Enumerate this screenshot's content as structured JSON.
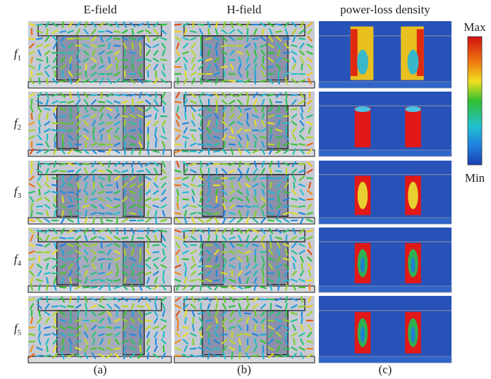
{
  "column_titles": [
    "E-field",
    "H-field",
    "power-loss density"
  ],
  "row_labels": [
    {
      "base": "f",
      "sub": "1"
    },
    {
      "base": "f",
      "sub": "2"
    },
    {
      "base": "f",
      "sub": "3"
    },
    {
      "base": "f",
      "sub": "4"
    },
    {
      "base": "f",
      "sub": "5"
    }
  ],
  "colorbar": {
    "max": "Max",
    "min": "Min"
  },
  "panel_labels": [
    "(a)",
    "(b)",
    "(c)"
  ]
}
